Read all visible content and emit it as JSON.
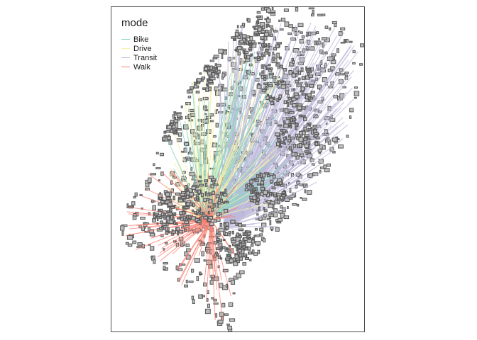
{
  "legend": {
    "title": "mode",
    "items": [
      {
        "label": "Bike",
        "color": "#8dd3c7"
      },
      {
        "label": "Drive",
        "color": "#f7f3a6"
      },
      {
        "label": "Transit",
        "color": "#bebada"
      },
      {
        "label": "Walk",
        "color": "#fb8072"
      }
    ]
  },
  "colors": {
    "building_fill": "#bdbdbd",
    "building_stroke": "#595959",
    "frame": "#4d4d4d"
  }
}
